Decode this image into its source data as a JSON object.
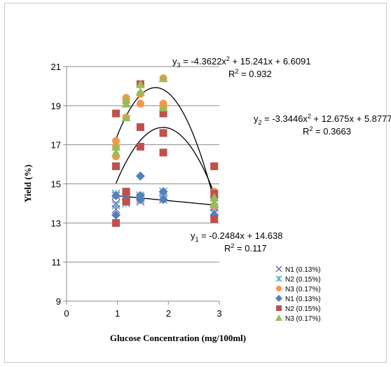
{
  "chart_data": {
    "type": "scatter",
    "xlabel": "Glucose Concentration  (mg/100ml)",
    "ylabel": "Yield (%)",
    "xlim": [
      0,
      3
    ],
    "ylim": [
      9,
      21
    ],
    "xticks": [
      0,
      1,
      2,
      3
    ],
    "yticks": [
      9,
      11,
      13,
      15,
      17,
      19,
      21
    ],
    "grid": "horizontal",
    "legend_position": "bottom-right",
    "series": [
      {
        "name": "N1 (0.13%)",
        "marker": "x",
        "color": "#7f5fa8",
        "points": [
          [
            0.97,
            14.4
          ],
          [
            0.97,
            14.0
          ],
          [
            0.97,
            13.7
          ],
          [
            1.17,
            14.2
          ],
          [
            1.17,
            14.1
          ],
          [
            1.45,
            14.3
          ],
          [
            1.45,
            14.1
          ],
          [
            1.9,
            14.4
          ],
          [
            1.9,
            14.2
          ],
          [
            2.9,
            13.8
          ],
          [
            2.9,
            13.5
          ]
        ]
      },
      {
        "name": "N2 (0.15%)",
        "marker": "asterisk",
        "color": "#4bacc6",
        "points": [
          [
            0.97,
            14.5
          ],
          [
            0.97,
            13.9
          ],
          [
            1.17,
            14.3
          ],
          [
            1.17,
            14.0
          ],
          [
            1.45,
            14.4
          ],
          [
            1.45,
            14.2
          ],
          [
            1.9,
            14.6
          ],
          [
            1.9,
            14.3
          ],
          [
            2.9,
            14.0
          ],
          [
            2.9,
            13.6
          ]
        ]
      },
      {
        "name": "N3 (0.17%)",
        "marker": "circle",
        "color": "#f79646",
        "points": [
          [
            0.97,
            17.2
          ],
          [
            0.97,
            16.4
          ],
          [
            0.97,
            16.9
          ],
          [
            1.17,
            19.4
          ],
          [
            1.17,
            19.3
          ],
          [
            1.17,
            18.4
          ],
          [
            1.45,
            20.1
          ],
          [
            1.45,
            19.6
          ],
          [
            1.45,
            19.1
          ],
          [
            1.9,
            20.4
          ],
          [
            1.9,
            19.1
          ],
          [
            1.9,
            18.9
          ],
          [
            2.9,
            14.6
          ],
          [
            2.9,
            13.9
          ]
        ]
      },
      {
        "name": "N1 (0.13%)",
        "marker": "diamond",
        "color": "#4f81bd",
        "points": [
          [
            0.97,
            14.4
          ],
          [
            0.97,
            13.4
          ],
          [
            1.17,
            14.5
          ],
          [
            1.17,
            14.2
          ],
          [
            1.45,
            15.4
          ],
          [
            1.45,
            14.4
          ],
          [
            1.45,
            14.2
          ],
          [
            1.9,
            14.6
          ],
          [
            1.9,
            14.2
          ],
          [
            2.9,
            14.3
          ],
          [
            2.9,
            13.4
          ]
        ]
      },
      {
        "name": "N2 (0.15%)",
        "marker": "square",
        "color": "#c0504d",
        "points": [
          [
            0.97,
            18.6
          ],
          [
            0.97,
            15.9
          ],
          [
            0.97,
            13.0
          ],
          [
            1.17,
            14.6
          ],
          [
            1.17,
            14.1
          ],
          [
            1.45,
            20.1
          ],
          [
            1.45,
            17.9
          ],
          [
            1.45,
            16.9
          ],
          [
            1.9,
            18.6
          ],
          [
            1.9,
            17.6
          ],
          [
            1.9,
            16.6
          ],
          [
            2.9,
            15.9
          ],
          [
            2.9,
            14.5
          ],
          [
            2.9,
            13.2
          ]
        ]
      },
      {
        "name": "N3 (0.17%)",
        "marker": "triangle",
        "color": "#9bbb59",
        "points": [
          [
            0.97,
            16.9
          ],
          [
            0.97,
            16.6
          ],
          [
            1.17,
            19.3
          ],
          [
            1.17,
            19.1
          ],
          [
            1.17,
            18.4
          ],
          [
            1.45,
            20.1
          ],
          [
            1.45,
            19.7
          ],
          [
            1.9,
            20.4
          ],
          [
            1.9,
            18.9
          ],
          [
            2.9,
            14.3
          ],
          [
            2.9,
            14.0
          ]
        ]
      }
    ],
    "trendlines": [
      {
        "type": "poly2",
        "coef": [
          -4.3622,
          15.241,
          6.6091
        ],
        "x_range": [
          0.97,
          2.9
        ],
        "color": "#000000"
      },
      {
        "type": "poly2",
        "coef": [
          -3.3446,
          12.675,
          5.8777
        ],
        "x_range": [
          0.97,
          2.9
        ],
        "color": "#000000"
      },
      {
        "type": "linear",
        "coef": [
          -0.2484,
          14.638
        ],
        "x_range": [
          0.97,
          2.9
        ],
        "color": "#000000"
      }
    ],
    "annotations": [
      {
        "id": "eq3",
        "y_var": "y",
        "sub": "3",
        "equation": " = -4.3622x",
        "sup": "2",
        "rest": " + 15.241x + 6.6091",
        "r2_label": "R",
        "r2_sup": "2",
        "r2_value": " = 0.932"
      },
      {
        "id": "eq2",
        "y_var": "y",
        "sub": "2",
        "equation": " = -3.3446x",
        "sup": "2",
        "rest": " + 12.675x + 5.8777",
        "r2_label": "R",
        "r2_sup": "2",
        "r2_value": " = 0.3663"
      },
      {
        "id": "eq1",
        "y_var": "y",
        "sub": "1",
        "equation": " = -0.2484x + 14.638",
        "sup": "",
        "rest": "",
        "r2_label": "R",
        "r2_sup": "2",
        "r2_value": " = 0.117"
      }
    ]
  }
}
